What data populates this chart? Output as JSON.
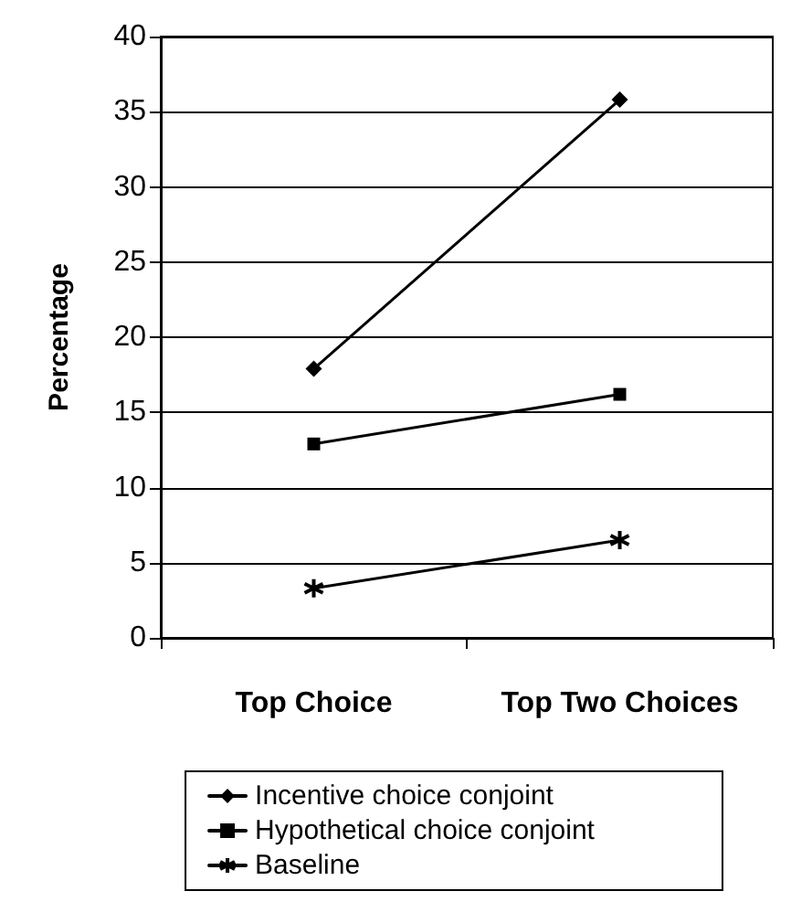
{
  "chart_data": {
    "type": "line",
    "ylabel": "Percentage",
    "categories": [
      "Top Choice",
      "Top Two Choices"
    ],
    "series": [
      {
        "name": "Incentive choice conjoint",
        "color": "#000000",
        "marker": "diamond",
        "values": [
          17.9,
          35.8
        ]
      },
      {
        "name": "Hypothetical choice conjoint",
        "color": "#000000",
        "marker": "square",
        "values": [
          12.9,
          16.2
        ]
      },
      {
        "name": "Baseline",
        "color": "#000000",
        "marker": "cross",
        "values": [
          3.3,
          6.5
        ]
      }
    ],
    "ylim": [
      0,
      40
    ],
    "yticks": [
      0,
      5,
      10,
      15,
      20,
      25,
      30,
      35,
      40
    ],
    "grid": "y",
    "legend": "bottom",
    "line_style": "solid"
  }
}
